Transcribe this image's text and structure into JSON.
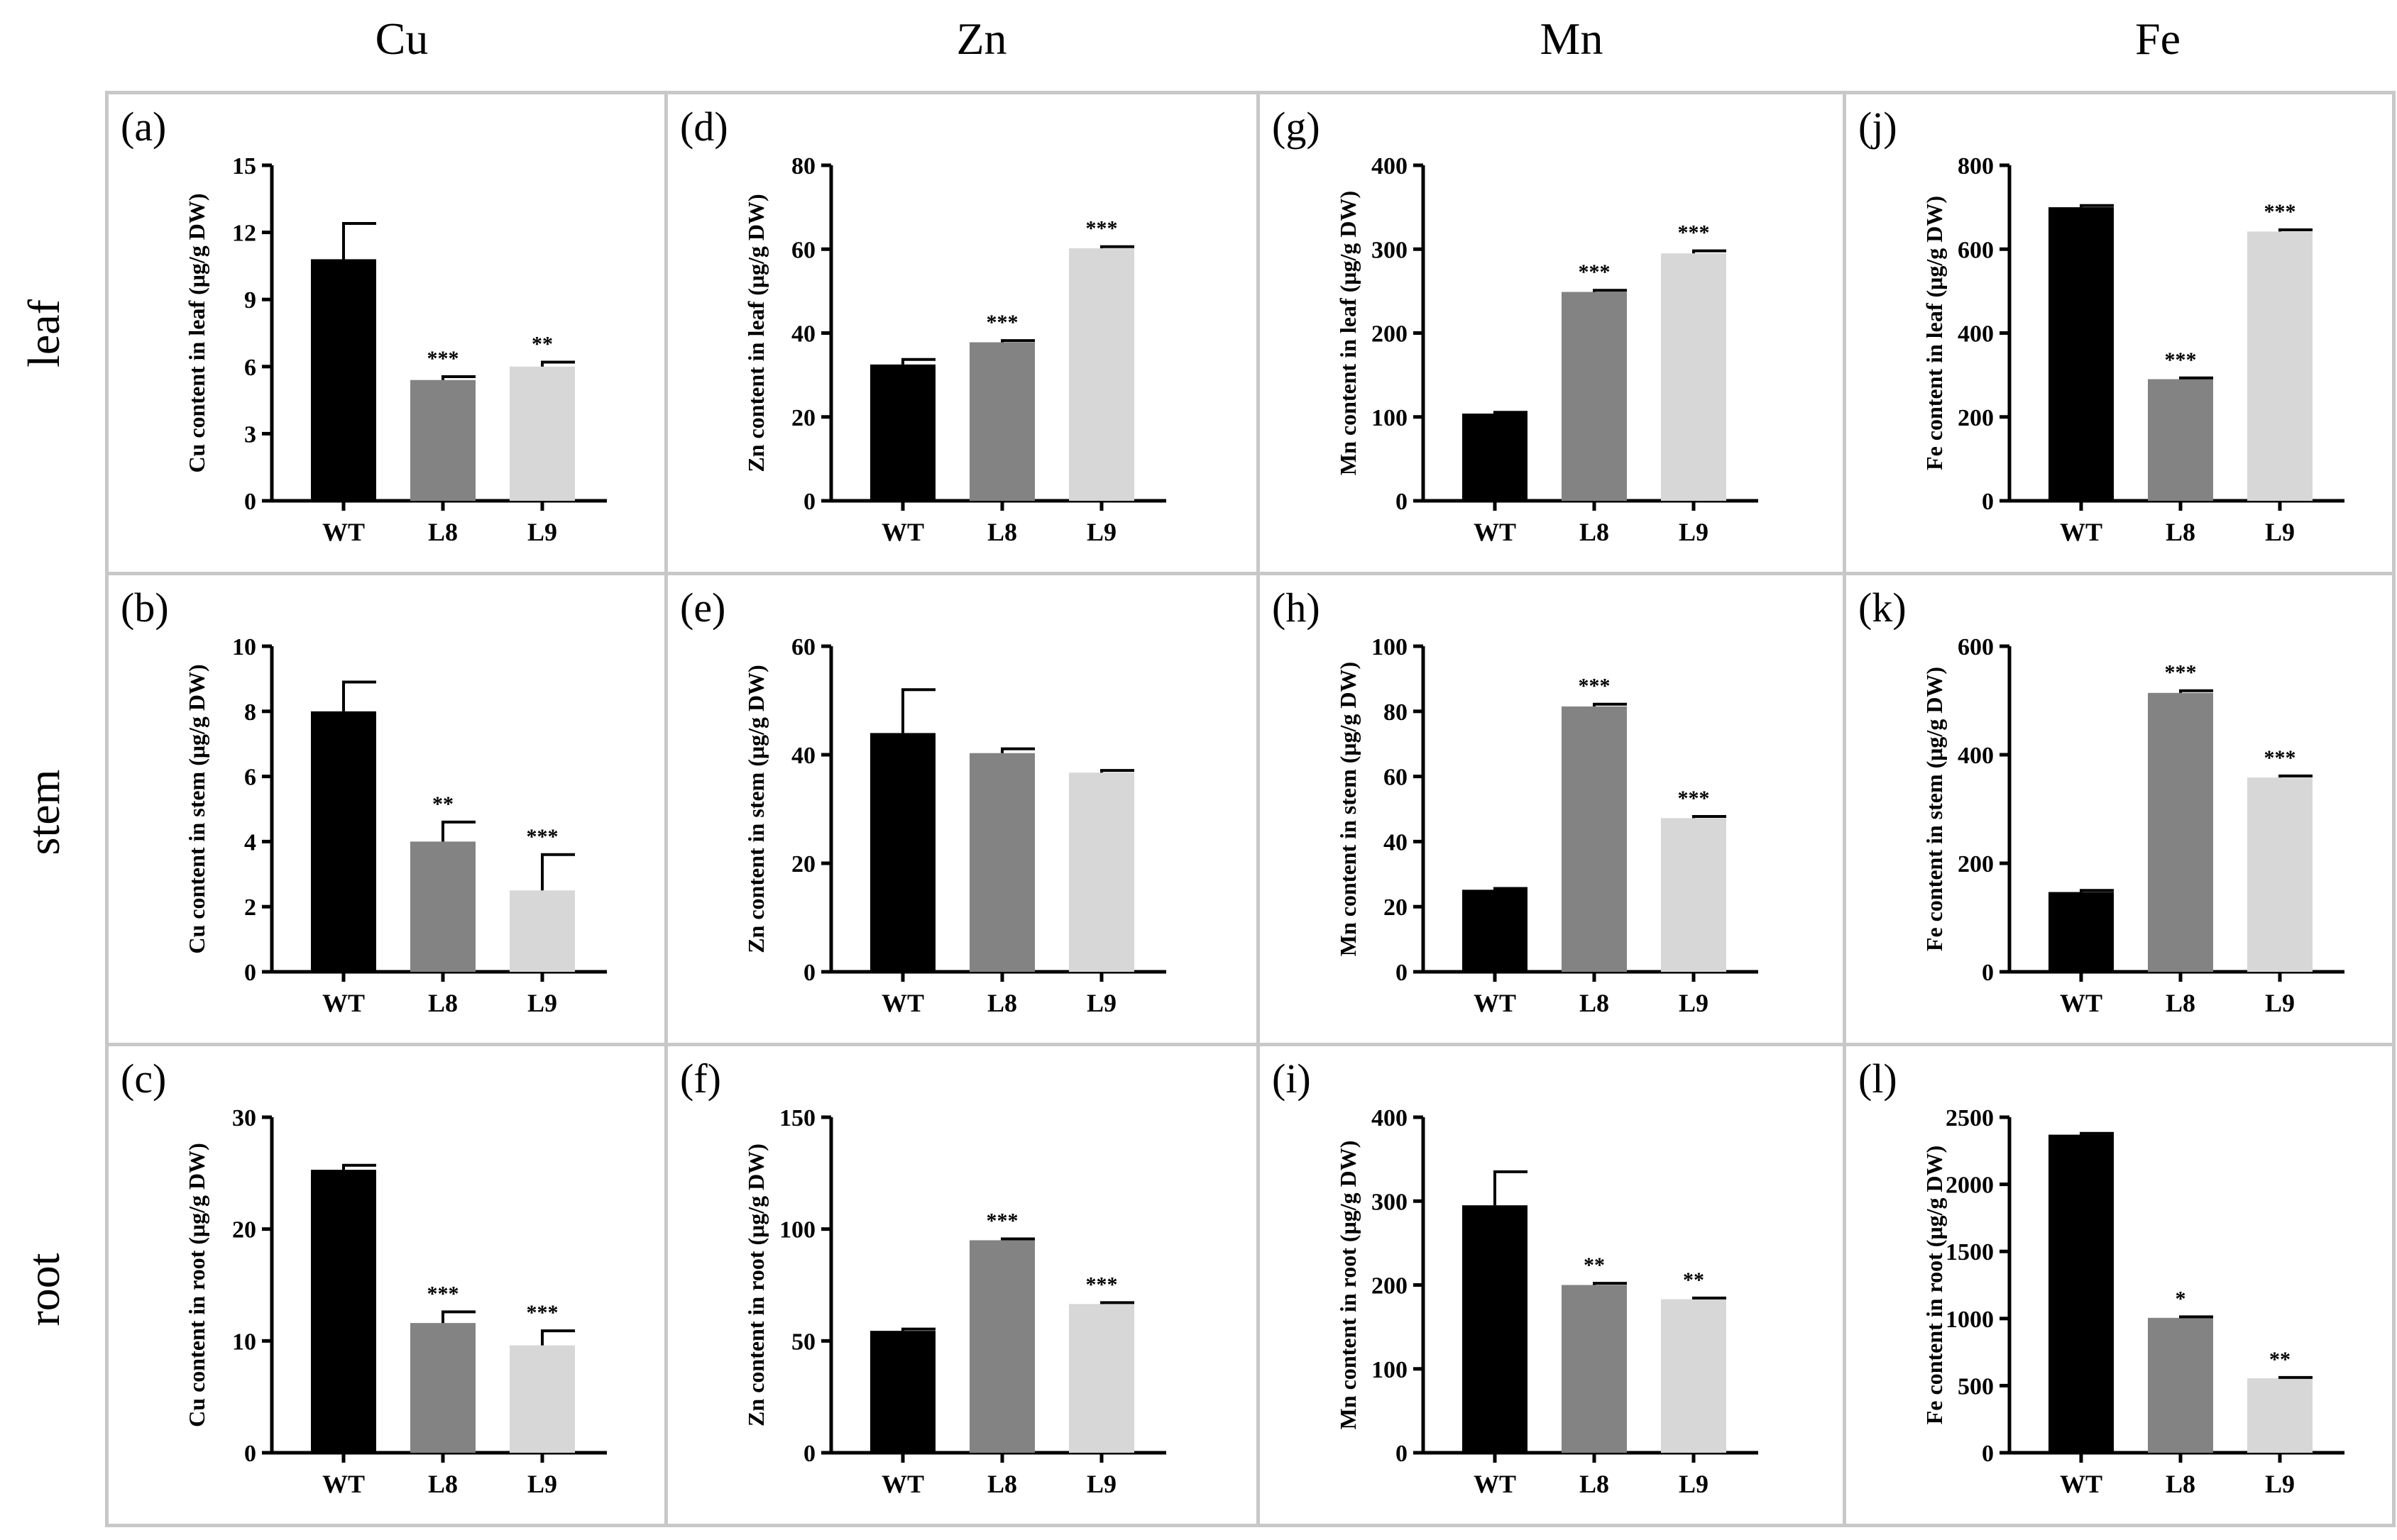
{
  "columns": [
    "Cu",
    "Zn",
    "Mn",
    "Fe"
  ],
  "rows": [
    "leaf",
    "stem",
    "root"
  ],
  "colors": {
    "WT": "#000000",
    "L8": "#838383",
    "L9": "#d7d7d7",
    "frame": "#c8c8c8"
  },
  "chart_data": [
    {
      "panel": "(a)",
      "type": "bar",
      "categories": [
        "WT",
        "L8",
        "L9"
      ],
      "ylabel": "Cu content in leaf (μg/g DW)",
      "ylim": [
        0,
        15
      ],
      "yticks": [
        0,
        3,
        6,
        9,
        12,
        15
      ],
      "values": [
        10.8,
        5.4,
        6.0
      ],
      "errors": [
        1.6,
        0.15,
        0.2
      ],
      "significance": [
        "",
        "***",
        "**"
      ]
    },
    {
      "panel": "(b)",
      "type": "bar",
      "categories": [
        "WT",
        "L8",
        "L9"
      ],
      "ylabel": "Cu content in stem (μg/g DW)",
      "ylim": [
        0,
        10
      ],
      "yticks": [
        0,
        2,
        4,
        6,
        8,
        10
      ],
      "values": [
        8.0,
        4.0,
        2.5
      ],
      "errors": [
        0.9,
        0.6,
        1.1
      ],
      "significance": [
        "",
        "**",
        "***"
      ]
    },
    {
      "panel": "(c)",
      "type": "bar",
      "categories": [
        "WT",
        "L8",
        "L9"
      ],
      "ylabel": "Cu content in root (μg/g DW)",
      "ylim": [
        0,
        30
      ],
      "yticks": [
        0,
        10,
        20,
        30
      ],
      "values": [
        25.3,
        11.6,
        9.6
      ],
      "errors": [
        0.4,
        1.0,
        1.3
      ],
      "significance": [
        "",
        "***",
        "***"
      ]
    },
    {
      "panel": "(d)",
      "type": "bar",
      "categories": [
        "WT",
        "L8",
        "L9"
      ],
      "ylabel": "Zn content in leaf (μg/g DW)",
      "ylim": [
        0,
        80
      ],
      "yticks": [
        0,
        20,
        40,
        60,
        80
      ],
      "values": [
        32.5,
        37.8,
        60.2
      ],
      "errors": [
        1.2,
        0.4,
        0.4
      ],
      "significance": [
        "",
        "***",
        "***"
      ]
    },
    {
      "panel": "(e)",
      "type": "bar",
      "categories": [
        "WT",
        "L8",
        "L9"
      ],
      "ylabel": "Zn content in stem (μg/g DW)",
      "ylim": [
        0,
        60
      ],
      "yticks": [
        0,
        20,
        40,
        60
      ],
      "values": [
        44.0,
        40.3,
        36.7
      ],
      "errors": [
        8.0,
        0.8,
        0.4
      ],
      "significance": [
        "",
        "",
        ""
      ]
    },
    {
      "panel": "(f)",
      "type": "bar",
      "categories": [
        "WT",
        "L8",
        "L9"
      ],
      "ylabel": "Zn content in root (μg/g DW)",
      "ylim": [
        0,
        150
      ],
      "yticks": [
        0,
        50,
        100,
        150
      ],
      "values": [
        54.5,
        95.0,
        66.5
      ],
      "errors": [
        0.8,
        0.6,
        0.6
      ],
      "significance": [
        "",
        "***",
        "***"
      ]
    },
    {
      "panel": "(g)",
      "type": "bar",
      "categories": [
        "WT",
        "L8",
        "L9"
      ],
      "ylabel": "Mn content in leaf (μg/g DW)",
      "ylim": [
        0,
        400
      ],
      "yticks": [
        0,
        100,
        200,
        300,
        400
      ],
      "values": [
        104,
        249,
        295
      ],
      "errors": [
        1.5,
        2,
        3
      ],
      "significance": [
        "",
        "***",
        "***"
      ]
    },
    {
      "panel": "(h)",
      "type": "bar",
      "categories": [
        "WT",
        "L8",
        "L9"
      ],
      "ylabel": "Mn content in stem (μg/g DW)",
      "ylim": [
        0,
        100
      ],
      "yticks": [
        0,
        20,
        40,
        60,
        80,
        100
      ],
      "values": [
        25.2,
        81.5,
        47.2
      ],
      "errors": [
        0.4,
        0.7,
        0.5
      ],
      "significance": [
        "",
        "***",
        "***"
      ]
    },
    {
      "panel": "(i)",
      "type": "bar",
      "categories": [
        "WT",
        "L8",
        "L9"
      ],
      "ylabel": "Mn content in root (μg/g DW)",
      "ylim": [
        0,
        400
      ],
      "yticks": [
        0,
        100,
        200,
        300,
        400
      ],
      "values": [
        295,
        200,
        183
      ],
      "errors": [
        40,
        2,
        1.5
      ],
      "significance": [
        "",
        "**",
        "**"
      ]
    },
    {
      "panel": "(j)",
      "type": "bar",
      "categories": [
        "WT",
        "L8",
        "L9"
      ],
      "ylabel": "Fe content in leaf (μg/g DW)",
      "ylim": [
        0,
        800
      ],
      "yticks": [
        0,
        200,
        400,
        600,
        800
      ],
      "values": [
        700,
        290,
        642
      ],
      "errors": [
        4,
        3,
        4
      ],
      "significance": [
        "",
        "***",
        "***"
      ]
    },
    {
      "panel": "(k)",
      "type": "bar",
      "categories": [
        "WT",
        "L8",
        "L9"
      ],
      "ylabel": "Fe content in stem (μg/g DW)",
      "ylim": [
        0,
        600
      ],
      "yticks": [
        0,
        200,
        400,
        600
      ],
      "values": [
        147,
        514,
        358
      ],
      "errors": [
        3,
        4,
        3
      ],
      "significance": [
        "",
        "***",
        "***"
      ]
    },
    {
      "panel": "(l)",
      "type": "bar",
      "categories": [
        "WT",
        "L8",
        "L9"
      ],
      "ylabel": "Fe content in root (μg/g DW)",
      "ylim": [
        0,
        2500
      ],
      "yticks": [
        0,
        500,
        1000,
        1500,
        2000,
        2500
      ],
      "values": [
        2370,
        1005,
        555
      ],
      "errors": [
        10,
        8,
        6
      ],
      "significance": [
        "",
        "*",
        "**"
      ]
    }
  ]
}
